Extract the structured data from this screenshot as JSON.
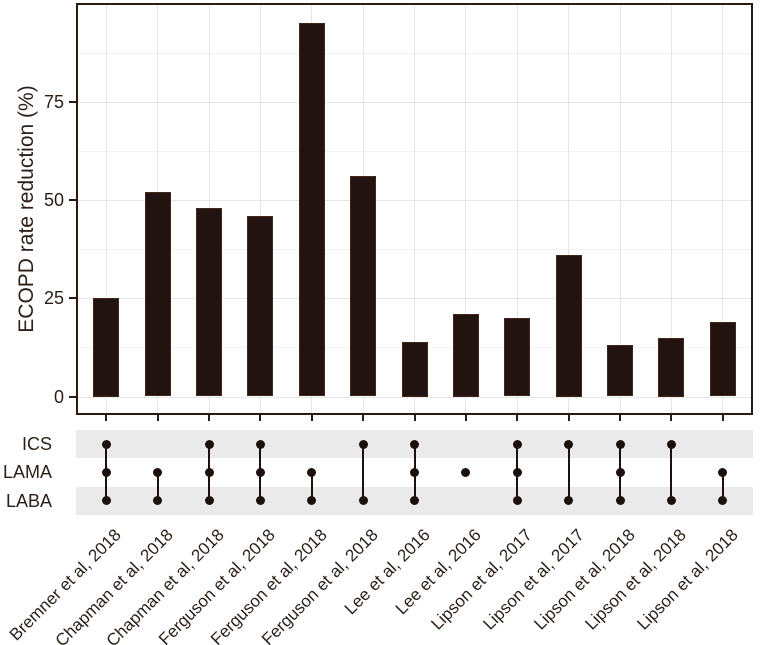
{
  "chart_data": {
    "type": "bar",
    "subtype": "upset-intersection-plot",
    "ylabel": "ECOPD rate reduction (%)",
    "ylim": [
      0,
      100
    ],
    "yticks": [
      0,
      25,
      50,
      75
    ],
    "grid": "horizontal major+minor gridlines, vertical gridline at each category; legend none",
    "categories": [
      "Bremner et al, 2018",
      "Chapman et al, 2018",
      "Chapman et al, 2018",
      "Ferguson et al, 2018",
      "Ferguson et al, 2018",
      "Ferguson et al, 2018",
      "Lee et al, 2016",
      "Lee et al, 2016",
      "Lipson et al, 2017",
      "Lipson et al, 2017",
      "Lipson et al, 2018",
      "Lipson et al, 2018",
      "Lipson et al, 2018"
    ],
    "values": [
      25,
      52,
      48,
      46,
      95,
      56,
      14,
      21,
      20,
      36,
      13,
      15,
      19
    ],
    "matrix": {
      "rows": [
        "ICS",
        "LAMA",
        "LABA"
      ],
      "membership": [
        [
          1,
          1,
          1
        ],
        [
          0,
          1,
          1
        ],
        [
          1,
          1,
          1
        ],
        [
          1,
          1,
          1
        ],
        [
          0,
          1,
          1
        ],
        [
          1,
          0,
          1
        ],
        [
          1,
          1,
          1
        ],
        [
          0,
          1,
          0
        ],
        [
          1,
          1,
          1
        ],
        [
          1,
          0,
          1
        ],
        [
          1,
          1,
          1
        ],
        [
          1,
          0,
          1
        ],
        [
          0,
          1,
          1
        ]
      ]
    }
  },
  "colors": {
    "bar_fill": "#231310",
    "bar_stroke": "#41261a",
    "panel_border": "#2b1a12",
    "grid_major": "#e5e5e5",
    "grid_minor": "#f2f2f2",
    "stripe_gray": "#eaeaea",
    "dot": "#1b100c",
    "text": "#2b1f18"
  }
}
